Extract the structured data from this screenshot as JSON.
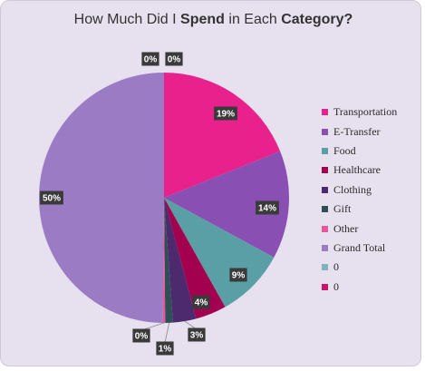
{
  "chart_data": {
    "type": "pie",
    "title_parts": [
      {
        "text": "How Much Did I ",
        "bold": false
      },
      {
        "text": "Spend",
        "bold": true
      },
      {
        "text": " in Each ",
        "bold": false
      },
      {
        "text": "Category?",
        "bold": true
      }
    ],
    "slices": [
      {
        "label": "Transportation",
        "value": 19,
        "color": "#e9218c",
        "data_label": "19%"
      },
      {
        "label": "E-Transfer",
        "value": 14,
        "color": "#8a4fb3",
        "data_label": "14%"
      },
      {
        "label": "Food",
        "value": 9,
        "color": "#5a9fa6",
        "data_label": "9%"
      },
      {
        "label": "Healthcare",
        "value": 4,
        "color": "#a3004f",
        "data_label": "4%"
      },
      {
        "label": "Clothing",
        "value": 3,
        "color": "#4d2a6e",
        "data_label": "3%"
      },
      {
        "label": "Gift",
        "value": 1,
        "color": "#2f4f57",
        "data_label": "1%"
      },
      {
        "label": "Other",
        "value": 0.3,
        "color": "#e8559a",
        "data_label": "0%"
      },
      {
        "label": "Grand Total",
        "value": 50,
        "color": "#9b7cc4",
        "data_label": "50%"
      },
      {
        "label": "0",
        "value": 0,
        "color": "#7fb4be",
        "data_label": "0%"
      },
      {
        "label": "0",
        "value": 0,
        "color": "#c7156e",
        "data_label": "0%"
      }
    ],
    "legend_position": "right",
    "data_labels": true
  }
}
